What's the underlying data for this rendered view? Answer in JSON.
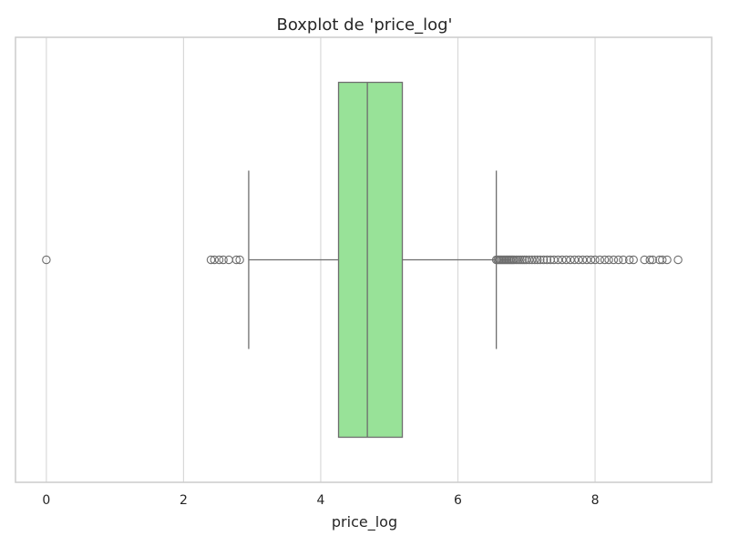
{
  "chart_data": {
    "type": "boxplot",
    "title": "Boxplot de 'price_log'",
    "xlabel": "price_log",
    "ylabel": "",
    "orientation": "horizontal",
    "xlim": [
      -0.45,
      9.7
    ],
    "xticks": [
      0,
      2,
      4,
      6,
      8
    ],
    "xtick_labels": [
      "0",
      "2",
      "4",
      "6",
      "8"
    ],
    "grid": "vertical",
    "box": {
      "q1": 4.26,
      "median": 4.68,
      "q3": 5.19,
      "whisker_low": 2.95,
      "whisker_high": 6.56
    },
    "outliers": [
      0.0,
      2.4,
      2.45,
      2.52,
      2.58,
      2.66,
      2.77,
      2.82,
      6.56,
      6.58,
      6.6,
      6.62,
      6.64,
      6.66,
      6.68,
      6.7,
      6.72,
      6.74,
      6.76,
      6.78,
      6.8,
      6.82,
      6.85,
      6.88,
      6.91,
      6.94,
      6.97,
      7.0,
      7.04,
      7.08,
      7.12,
      7.16,
      7.2,
      7.25,
      7.3,
      7.35,
      7.4,
      7.46,
      7.52,
      7.58,
      7.64,
      7.7,
      7.76,
      7.82,
      7.88,
      7.94,
      8.0,
      8.07,
      8.14,
      8.2,
      8.27,
      8.34,
      8.41,
      8.5,
      8.56,
      8.72,
      8.8,
      8.84,
      8.94,
      8.98,
      9.05,
      9.21
    ],
    "colors": {
      "box_fill": "#98e298",
      "lines": "#6e6e6e",
      "grid": "#d9d9d9",
      "frame": "#cccccc"
    }
  }
}
